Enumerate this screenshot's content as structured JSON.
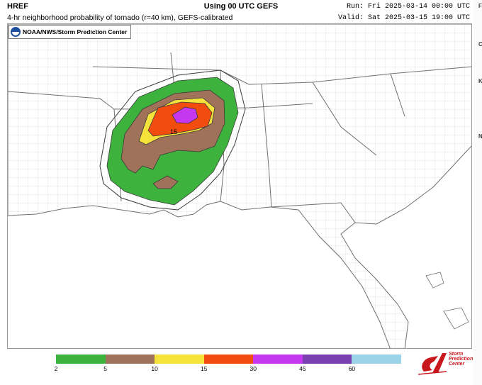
{
  "header": {
    "model": "HREF",
    "subtitle": "4-hr neighborhood probability of tornado (r=40 km), GEFS-calibrated",
    "center_title": "Using 00 UTC GEFS",
    "run": "Run: Fri 2025-03-14 00:00 UTC",
    "valid": "Valid: Sat 2025-03-15 19:00 UTC"
  },
  "map": {
    "badge_text": "NOAA/NWS/Storm Prediction Center",
    "contour_label": "15",
    "colors": {
      "p2": "#3db33d",
      "p5": "#a0725a",
      "p10": "#f5e23b",
      "p15": "#f24c0f",
      "p30": "#c538f0",
      "outline": "#3a3a3a",
      "border": "#707070"
    }
  },
  "legend": {
    "labels": [
      "2",
      "5",
      "10",
      "15",
      "30",
      "45",
      "60"
    ],
    "colors": [
      "#3db33d",
      "#a0725a",
      "#f5e23b",
      "#f24c0f",
      "#c538f0",
      "#7a3fb0",
      "#9bd4e8"
    ]
  },
  "logo": {
    "lines": [
      "Storm",
      "Prediction",
      "Center"
    ]
  },
  "right_strip": {
    "letters": [
      "F",
      "C",
      "K",
      "N"
    ]
  }
}
